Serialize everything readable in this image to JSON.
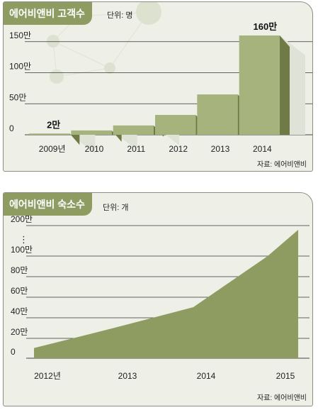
{
  "charts": [
    {
      "title": "에어비앤비 고객수",
      "unit": "단위: 명",
      "source": "자료: 에어비앤비",
      "bar_labels": [
        "2만",
        "160만"
      ],
      "colors": {
        "bar_front": "#a6b37c",
        "bar_top": "#8f9c62",
        "bar_side": "#6f7a47",
        "accent": "#8e9c62"
      }
    },
    {
      "title": "에어비앤비 숙소수",
      "unit": "단위: 개",
      "source": "자료: 에어비앤비",
      "axis_break": "⋮",
      "colors": {
        "area": "#8e9c62"
      }
    }
  ],
  "chart_data": [
    {
      "type": "bar",
      "title": "에어비앤비 고객수",
      "unit": "명",
      "categories": [
        "2009년",
        "2010",
        "2011",
        "2012",
        "2013",
        "2014"
      ],
      "values": [
        20000,
        70000,
        150000,
        320000,
        650000,
        1600000
      ],
      "data_labels": {
        "2009년": "2만",
        "2014": "160만"
      },
      "yticks": [
        {
          "value": 0,
          "label": "0"
        },
        {
          "value": 500000,
          "label": "50만"
        },
        {
          "value": 1000000,
          "label": "100만"
        },
        {
          "value": 1500000,
          "label": "150만"
        }
      ],
      "ylim": [
        0,
        1600000
      ],
      "grid": true,
      "style": "3d-stepped"
    },
    {
      "type": "area",
      "title": "에어비앤비 숙소수",
      "unit": "개",
      "x": [
        "2012년",
        "2013",
        "2014",
        "2015"
      ],
      "values": [
        100000,
        300000,
        500000,
        1000000
      ],
      "yticks": [
        {
          "value": 0,
          "label": "0"
        },
        {
          "value": 200000,
          "label": "20만"
        },
        {
          "value": 400000,
          "label": "40만"
        },
        {
          "value": 600000,
          "label": "60만"
        },
        {
          "value": 800000,
          "label": "80만"
        },
        {
          "value": 1000000,
          "label": "100만"
        },
        {
          "value": 2000000,
          "label": "200만"
        }
      ],
      "axis_break_between": [
        "100만",
        "200만"
      ],
      "grid": true
    }
  ]
}
